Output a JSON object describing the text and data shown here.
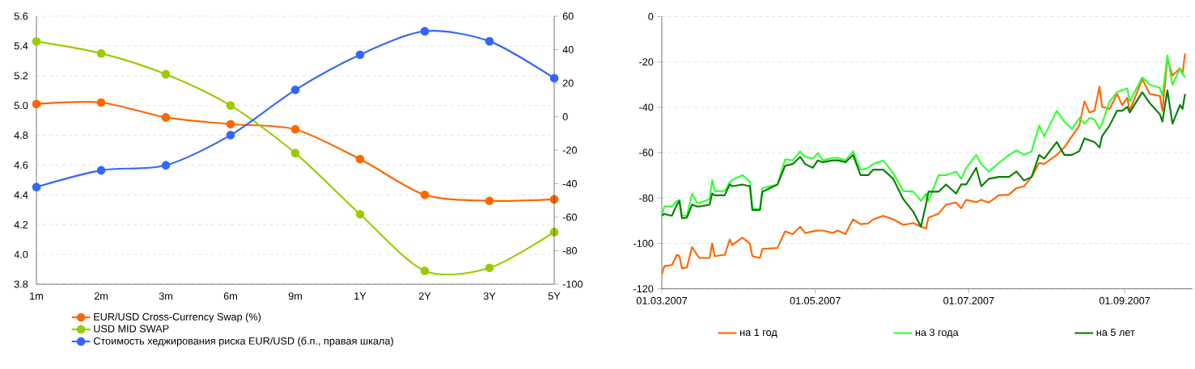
{
  "chart_data": [
    {
      "type": "line",
      "categories": [
        "1m",
        "2m",
        "3m",
        "6m",
        "9m",
        "1Y",
        "2Y",
        "3Y",
        "5Y"
      ],
      "ylim": [
        3.8,
        5.6
      ],
      "yticks": [
        3.8,
        {
          "value": 4.0,
          "label": "4.0"
        },
        4.2,
        4.4,
        4.6,
        4.8,
        {
          "value": 5.0,
          "label": "5.0"
        },
        5.2,
        5.4,
        5.6
      ],
      "y2lim": [
        -100,
        60
      ],
      "y2ticks": [
        -100,
        -80,
        -60,
        -40,
        -20,
        0,
        20,
        40,
        60
      ],
      "grid": "y",
      "legend": "bottom",
      "marker": "circle",
      "series": [
        {
          "name": "EUR/USD Cross-Currency Swap (%)",
          "color": "#ff6600",
          "values": [
            5.01,
            5.02,
            4.92,
            4.875,
            4.84,
            4.64,
            4.4,
            4.36,
            4.37
          ]
        },
        {
          "name": "USD MID SWAP",
          "color": "#99cc00",
          "values": [
            5.43,
            5.35,
            5.21,
            5.0,
            4.68,
            4.27,
            3.89,
            3.91,
            4.15
          ]
        },
        {
          "name": "Стоимость хеджирования риска EUR/USD (б.п., правая шкала)",
          "color": "#3366ff",
          "axis": "y2",
          "values": [
            -42,
            -32,
            -29,
            -11,
            16,
            37,
            51,
            45,
            23
          ]
        }
      ]
    },
    {
      "type": "line",
      "xlim": [
        "2007-03-01",
        "2007-09-28"
      ],
      "xticks": [
        {
          "value": "2007-03-01",
          "label": "01.03.2007"
        },
        {
          "value": "2007-05-01",
          "label": "01.05.2007"
        },
        {
          "value": "2007-07-01",
          "label": "01.07.2007"
        },
        {
          "value": "2007-09-01",
          "label": "01.09.2007"
        }
      ],
      "ylim": [
        -120,
        0
      ],
      "yticks": [
        -120,
        -100,
        -80,
        -60,
        -40,
        -20,
        0
      ],
      "grid": "y",
      "legend": "bottom",
      "marker": "none",
      "x": [
        "2007-03-01",
        "2007-03-02",
        "2007-03-05",
        "2007-03-07",
        "2007-03-08",
        "2007-03-09",
        "2007-03-11",
        "2007-03-13",
        "2007-03-15",
        "2007-03-16",
        "2007-03-20",
        "2007-03-21",
        "2007-03-22",
        "2007-03-26",
        "2007-03-28",
        "2007-03-29",
        "2007-04-02",
        "2007-04-05",
        "2007-04-06",
        "2007-04-09",
        "2007-04-10",
        "2007-04-16",
        "2007-04-19",
        "2007-04-22",
        "2007-04-25",
        "2007-04-27",
        "2007-04-30",
        "2007-05-02",
        "2007-05-04",
        "2007-05-08",
        "2007-05-10",
        "2007-05-13",
        "2007-05-16",
        "2007-05-19",
        "2007-05-22",
        "2007-05-24",
        "2007-05-28",
        "2007-06-01",
        "2007-06-05",
        "2007-06-09",
        "2007-06-12",
        "2007-06-14",
        "2007-06-15",
        "2007-06-19",
        "2007-06-22",
        "2007-06-26",
        "2007-06-28",
        "2007-06-30",
        "2007-07-04",
        "2007-07-06",
        "2007-07-09",
        "2007-07-13",
        "2007-07-17",
        "2007-07-20",
        "2007-07-23",
        "2007-07-26",
        "2007-07-29",
        "2007-07-31",
        "2007-08-05",
        "2007-08-08",
        "2007-08-11",
        "2007-08-14",
        "2007-08-16",
        "2007-08-18",
        "2007-08-20",
        "2007-08-22",
        "2007-08-23",
        "2007-08-26",
        "2007-08-29",
        "2007-08-31",
        "2007-09-02",
        "2007-09-03",
        "2007-09-08",
        "2007-09-11",
        "2007-09-15",
        "2007-09-16",
        "2007-09-18",
        "2007-09-20",
        "2007-09-23",
        "2007-09-24",
        "2007-09-25"
      ],
      "series": [
        {
          "name": "на 1 год",
          "color": "#ff6600",
          "values": [
            -113.7,
            -110,
            -109.5,
            -105,
            -105.6,
            -111,
            -110.5,
            -101.6,
            -105,
            -106.4,
            -106.4,
            -100,
            -105.6,
            -105,
            -98.3,
            -100.7,
            -97.5,
            -100,
            -105.6,
            -106.4,
            -102.4,
            -102,
            -94.7,
            -95.9,
            -92.6,
            -95.4,
            -94.7,
            -94.3,
            -94.3,
            -95.4,
            -94.3,
            -95.9,
            -89.4,
            -91.5,
            -91.2,
            -89.4,
            -87.8,
            -89.4,
            -91.8,
            -91,
            -92.6,
            -93.4,
            -88.6,
            -86.9,
            -82.9,
            -82,
            -84.5,
            -80.8,
            -81.8,
            -80.8,
            -82,
            -78.8,
            -78.5,
            -75.6,
            -74.8,
            -70.7,
            -64.5,
            -65,
            -61,
            -57.7,
            -52.8,
            -48,
            -37.4,
            -42.3,
            -41.5,
            -30.9,
            -39.8,
            -40.7,
            -34.1,
            -39,
            -35.8,
            -41.5,
            -27.6,
            -34.1,
            -35,
            -41.5,
            -18.7,
            -26,
            -22.8,
            -25.2,
            -16.3
          ]
        },
        {
          "name": "на 3 года",
          "color": "#33ff33",
          "values": [
            -87.8,
            -83.7,
            -83.7,
            -81.3,
            -80.8,
            -87.8,
            -87.8,
            -78,
            -82.1,
            -82.1,
            -80.5,
            -72,
            -76.9,
            -76.9,
            -73.1,
            -72,
            -69.9,
            -72.7,
            -84.5,
            -85,
            -75.6,
            -74,
            -62.9,
            -63.4,
            -59.4,
            -61.8,
            -62.6,
            -60.2,
            -63.4,
            -62.3,
            -62.3,
            -63.4,
            -59.4,
            -67.5,
            -66.7,
            -65,
            -63.4,
            -69.1,
            -76.9,
            -77.2,
            -81.3,
            -78,
            -81.3,
            -69.9,
            -69.9,
            -68.3,
            -71.5,
            -66.7,
            -61,
            -65,
            -68.3,
            -64.5,
            -61,
            -59,
            -61,
            -59.4,
            -48,
            -52.8,
            -41.5,
            -46.3,
            -49.6,
            -44.7,
            -47.2,
            -44.7,
            -45.5,
            -49.6,
            -47.2,
            -37.4,
            -33.3,
            -32.5,
            -31.7,
            -37.4,
            -26.8,
            -30.1,
            -31.4,
            -35,
            -17.1,
            -30.1,
            -22.8,
            -25.2,
            -26.8
          ]
        },
        {
          "name": "на 5 лет",
          "color": "#008000",
          "values": [
            -87.8,
            -87,
            -87.8,
            -82.9,
            -81.3,
            -88.9,
            -88.6,
            -82.9,
            -83.7,
            -83.7,
            -82.9,
            -78,
            -78.8,
            -78.8,
            -74,
            -74.8,
            -74,
            -74.8,
            -85.3,
            -85.3,
            -77.2,
            -74,
            -65.8,
            -65,
            -61.8,
            -65,
            -66.7,
            -63.4,
            -64.2,
            -63.4,
            -63.4,
            -64.2,
            -61,
            -69.9,
            -69.9,
            -67.5,
            -67.5,
            -71.5,
            -80.5,
            -86.1,
            -92.6,
            -82.9,
            -77.2,
            -77.2,
            -74,
            -78,
            -74,
            -74,
            -66.7,
            -74.8,
            -71.5,
            -70.7,
            -70.7,
            -68.3,
            -72.3,
            -70.7,
            -61,
            -62.6,
            -55.3,
            -61,
            -61,
            -59.3,
            -53.7,
            -54.5,
            -55.3,
            -57.7,
            -52.8,
            -48,
            -41.5,
            -41.5,
            -39.8,
            -42.3,
            -33.3,
            -38.2,
            -43.1,
            -46.3,
            -32.5,
            -47.2,
            -39,
            -40.7,
            -34.1
          ]
        }
      ]
    }
  ]
}
